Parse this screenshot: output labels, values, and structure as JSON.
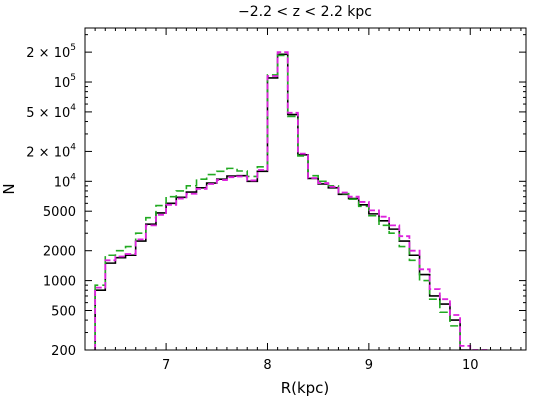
{
  "chart_data": {
    "type": "step",
    "title": "−2.2 < z < 2.2 kpc",
    "xlabel": "R(kpc)",
    "ylabel": "N",
    "xlim": [
      6.2,
      10.55
    ],
    "ylim": [
      200,
      350000
    ],
    "yscale": "log",
    "grid": false,
    "legend": "none",
    "xticks": [
      {
        "value": 7,
        "label": "7"
      },
      {
        "value": 8,
        "label": "8"
      },
      {
        "value": 9,
        "label": "9"
      },
      {
        "value": 10,
        "label": "10"
      }
    ],
    "yticks": [
      {
        "value": 200,
        "base": "200",
        "exp": ""
      },
      {
        "value": 500,
        "base": "500",
        "exp": ""
      },
      {
        "value": 1000,
        "base": "1000",
        "exp": ""
      },
      {
        "value": 2000,
        "base": "2000",
        "exp": ""
      },
      {
        "value": 5000,
        "base": "5000",
        "exp": ""
      },
      {
        "value": 10000,
        "base": "10",
        "exp": "4"
      },
      {
        "value": 20000,
        "base": "2 × 10",
        "exp": "4"
      },
      {
        "value": 50000,
        "base": "5 × 10",
        "exp": "4"
      },
      {
        "value": 100000,
        "base": "10",
        "exp": "5"
      },
      {
        "value": 200000,
        "base": "2 × 10",
        "exp": "5"
      }
    ],
    "bin_edges": [
      6.3,
      6.4,
      6.5,
      6.6,
      6.7,
      6.8,
      6.9,
      7.0,
      7.1,
      7.2,
      7.3,
      7.4,
      7.5,
      7.6,
      7.7,
      7.8,
      7.9,
      8.0,
      8.1,
      8.2,
      8.3,
      8.4,
      8.5,
      8.6,
      8.7,
      8.8,
      8.9,
      9.0,
      9.1,
      9.2,
      9.3,
      9.4,
      9.5,
      9.6,
      9.7,
      9.8,
      9.9,
      10.0,
      10.1,
      10.2
    ],
    "series": [
      {
        "color": "#000000",
        "dash": "",
        "width": 1.6,
        "values": [
          800,
          1500,
          1700,
          1800,
          2500,
          3700,
          4800,
          6000,
          6900,
          7800,
          8600,
          9600,
          10500,
          11300,
          11400,
          10000,
          12600,
          110000,
          190000,
          47000,
          18500,
          10700,
          9400,
          8600,
          7400,
          6700,
          5800,
          4700,
          4000,
          3300,
          2500,
          1800,
          1150,
          700,
          580,
          400,
          200,
          170,
          150
        ]
      },
      {
        "color": "#22aa22",
        "dash": "8,4",
        "width": 1.6,
        "values": [
          900,
          1800,
          2000,
          2200,
          3000,
          4300,
          5700,
          7000,
          8000,
          9000,
          10500,
          11700,
          12600,
          13500,
          12700,
          11200,
          14000,
          118000,
          185000,
          45000,
          18000,
          11400,
          10000,
          9000,
          7500,
          6600,
          5600,
          4500,
          3600,
          3000,
          2200,
          1600,
          1000,
          650,
          480,
          350,
          180,
          150,
          140
        ]
      },
      {
        "color": "#dd22dd",
        "dash": "6,3",
        "width": 1.8,
        "values": [
          850,
          1600,
          1750,
          1850,
          2600,
          3600,
          4600,
          5800,
          6700,
          7500,
          8400,
          9400,
          10300,
          11000,
          11200,
          10200,
          13000,
          115000,
          200000,
          49000,
          19000,
          10800,
          9600,
          8800,
          7700,
          7000,
          6200,
          5100,
          4400,
          3600,
          2800,
          2000,
          1300,
          820,
          650,
          450,
          220,
          200,
          200
        ]
      }
    ]
  }
}
